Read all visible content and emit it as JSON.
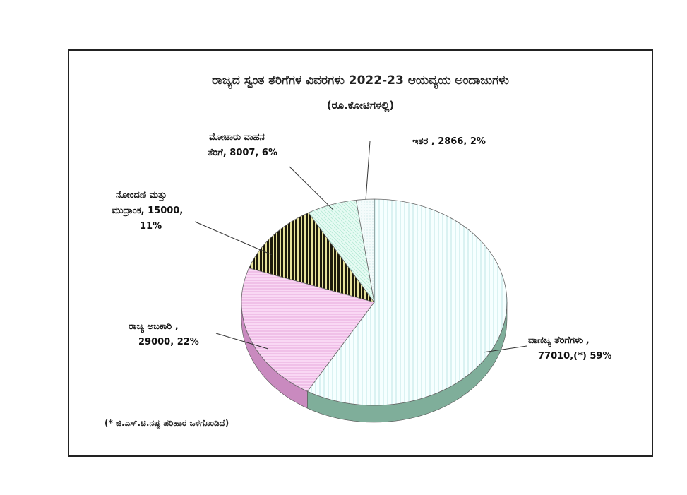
{
  "chart_data": {
    "type": "pie",
    "title": "ರಾಜ್ಯದ ಸ್ವಂತ ತೆರಿಗೆಗಳ ವಿವರಗಳು 2022-23 ಆಯವ್ಯಯ ಅಂದಾಜುಗಳು",
    "subtitle": "(ರೂ.ಕೋಟಿಗಳಲ್ಲಿ)",
    "slices": [
      {
        "name": "ವಾಣಿಜ್ಯ ತೆರಿಗೆಗಳು",
        "value": 77010,
        "percent": 59,
        "label_line1": "ವಾಣಿಜ್ಯ ತೆರಿಗೆಗಳು ,",
        "label_line2": "77010,(*) 59%",
        "color": "#e8fbfb"
      },
      {
        "name": "ರಾಜ್ಯ ಅಬಕಾರಿ",
        "value": 29000,
        "percent": 22,
        "label_line1": "ರಾಜ್ಯ ಅಬಕಾರಿ ,",
        "label_line2": "29000, 22%",
        "color": "#f7d4f2"
      },
      {
        "name": "ನೋಂದಣಿ ಮತ್ತು ಮುದ್ರಾಂಕ",
        "value": 15000,
        "percent": 11,
        "label_line1": "ನೋಂದಣಿ ಮತ್ತು",
        "label_line2": "ಮುದ್ರಾಂಕ, 15000,",
        "label_line3": "11%",
        "color": "#2e2a14"
      },
      {
        "name": "ಮೋಟಾರು ವಾಹನ ತೆರಿಗೆ",
        "value": 8007,
        "percent": 6,
        "label_line1": "ಮೋಟಾರು ವಾಹನ",
        "label_line2": "ತೆರಿಗೆ, 8007, 6%",
        "color": "#dff8ee"
      },
      {
        "name": "ಇತರ",
        "value": 2866,
        "percent": 2,
        "label_line1": "ಇತರ , 2866, 2%",
        "color": "#f4fbfb"
      }
    ],
    "footnote": "(* ಜಿ.ಎಸ್.ಟಿ.ನಷ್ಟ ಪರಿಹಾರ ಒಳಗೊಂಡಿದೆ)"
  }
}
